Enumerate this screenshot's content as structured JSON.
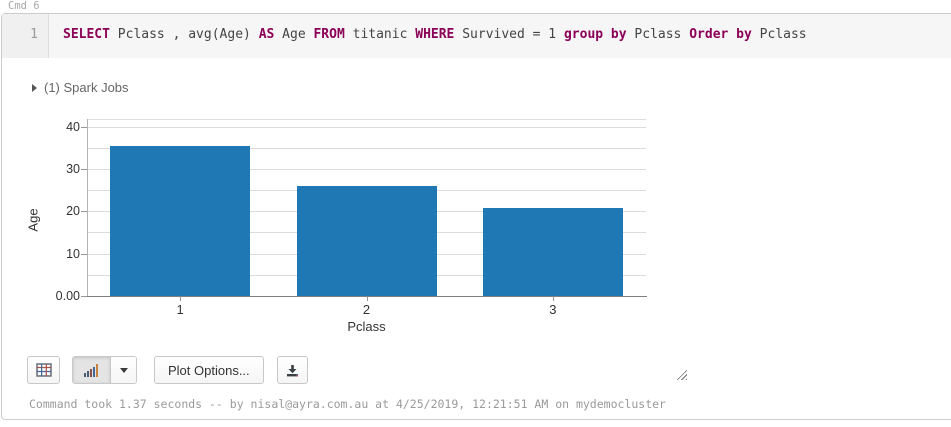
{
  "cell": {
    "label": "Cmd 6"
  },
  "sql": {
    "line_number": "1",
    "full_text": "SELECT Pclass , avg(Age) AS Age FROM titanic WHERE Survived = 1 group by Pclass Order by Pclass",
    "tokens": [
      {
        "k": true,
        "v": "SELECT"
      },
      {
        "k": false,
        "v": " Pclass , avg(Age) "
      },
      {
        "k": true,
        "v": "AS"
      },
      {
        "k": false,
        "v": " Age "
      },
      {
        "k": true,
        "v": "FROM"
      },
      {
        "k": false,
        "v": " titanic "
      },
      {
        "k": true,
        "v": "WHERE"
      },
      {
        "k": false,
        "v": " Survived = 1 "
      },
      {
        "k": true,
        "v": "group by"
      },
      {
        "k": false,
        "v": " Pclass "
      },
      {
        "k": true,
        "v": "Order by"
      },
      {
        "k": false,
        "v": " Pclass"
      }
    ],
    "keyword_color": "#8c0057"
  },
  "spark_jobs": {
    "label": "(1) Spark Jobs",
    "state": "collapsed"
  },
  "chart_data": {
    "type": "bar",
    "categories": [
      "1",
      "2",
      "3"
    ],
    "values": [
      35.4,
      26.1,
      20.7
    ],
    "title": "",
    "xlabel": "Pclass",
    "ylabel": "Age",
    "ylim": [
      0,
      40
    ],
    "ytick_values": [
      0,
      10,
      20,
      30,
      40
    ],
    "ytick_labels": [
      "0.00",
      "10",
      "20",
      "30",
      "40"
    ],
    "gridline_step": 5,
    "grid": true,
    "legend_position": "none",
    "bar_color": "#1f77b4"
  },
  "toolbar": {
    "table_button_icon": "table-grid-icon",
    "chart_button_icon": "bar-chart-icon",
    "chart_dropdown_icon": "caret-down-icon",
    "plot_options_label": "Plot Options...",
    "download_button_icon": "download-icon"
  },
  "footer": {
    "status": "Command took 1.37 seconds -- by nisal@ayra.com.au at 4/25/2019, 12:21:51 AM on mydemocluster"
  }
}
